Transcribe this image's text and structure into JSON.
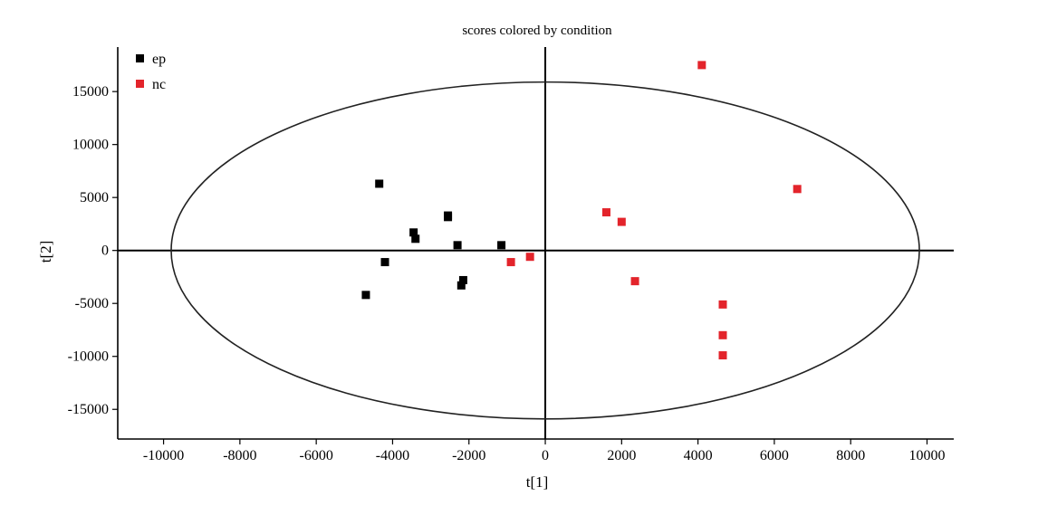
{
  "chart_data": {
    "type": "scatter",
    "title": "scores colored by condition",
    "xlabel": "t[1]",
    "ylabel": "t[2]",
    "xlim": [
      -11200,
      10700
    ],
    "ylim": [
      -17800,
      19200
    ],
    "x_ticks": [
      -10000,
      -8000,
      -6000,
      -4000,
      -2000,
      0,
      2000,
      4000,
      6000,
      8000,
      10000
    ],
    "y_ticks": [
      15000,
      10000,
      5000,
      0,
      -5000,
      -10000,
      -15000
    ],
    "x_tick_labels": [
      "-10000",
      "-8000",
      "-6000",
      "-4000",
      "-2000",
      "0",
      "2000",
      "4000",
      "6000",
      "8000",
      "10000"
    ],
    "y_tick_labels": [
      "15000",
      "10000",
      "5000",
      "0",
      "-5000",
      "-10000",
      "-15000"
    ],
    "grid": false,
    "legend_position": "top-left",
    "ellipse": {
      "cx": 0,
      "cy": 0,
      "rx": 9800,
      "ry": 15900
    },
    "series": [
      {
        "name": "ep",
        "color": "#000000",
        "points": [
          {
            "x": -4350,
            "y": 6300
          },
          {
            "x": -2550,
            "y": 3300
          },
          {
            "x": -2550,
            "y": 3150
          },
          {
            "x": -3450,
            "y": 1700
          },
          {
            "x": -3400,
            "y": 1100
          },
          {
            "x": -2300,
            "y": 500
          },
          {
            "x": -1150,
            "y": 500
          },
          {
            "x": -4200,
            "y": -1100
          },
          {
            "x": -2150,
            "y": -2800
          },
          {
            "x": -2200,
            "y": -3300
          },
          {
            "x": -4700,
            "y": -4200
          }
        ]
      },
      {
        "name": "nc",
        "color": "#e3242b",
        "points": [
          {
            "x": 4100,
            "y": 17500
          },
          {
            "x": 6600,
            "y": 5800
          },
          {
            "x": 1600,
            "y": 3600
          },
          {
            "x": 2000,
            "y": 2700
          },
          {
            "x": -900,
            "y": -1100
          },
          {
            "x": -400,
            "y": -600
          },
          {
            "x": 2350,
            "y": -2900
          },
          {
            "x": 4650,
            "y": -5100
          },
          {
            "x": 4650,
            "y": -8000
          },
          {
            "x": 4650,
            "y": -9900
          }
        ]
      }
    ]
  }
}
